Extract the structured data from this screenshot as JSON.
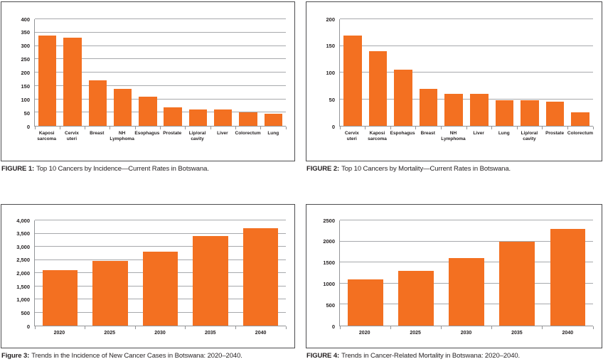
{
  "colors": {
    "bar_orange": "#F37021",
    "gridline_gray": "#A7A9AC",
    "axis_gray": "#939598",
    "box_border": "#4D4D4F",
    "text": "#231F20"
  },
  "chart_data": [
    {
      "type": "bar",
      "title": "FIGURE 1: Top 10 Cancers by Incidence—Current Rates in Botswana.",
      "caption_label": "FIGURE 1:",
      "caption_text": "Top 10 Cancers by Incidence—Current Rates in Botswana.",
      "categories": [
        "Kaposi sarcoma",
        "Cervix uteri",
        "Breast",
        "NH Lymphoma",
        "Esophagus",
        "Prostate",
        "Lip/oral cavity",
        "Liver",
        "Colorectum",
        "Lung"
      ],
      "values": [
        340,
        330,
        170,
        140,
        110,
        70,
        62,
        61,
        51,
        45
      ],
      "xlabel": "",
      "ylabel": "",
      "ylim": [
        0,
        400
      ],
      "ytick_interval": 50,
      "ytick_labels": [
        "0",
        "50",
        "100",
        "150",
        "200",
        "250",
        "300",
        "350",
        "400"
      ],
      "grid": true,
      "legend": false,
      "bar_color": "#F37021"
    },
    {
      "type": "bar",
      "title": "FIGURE 2: Top 10 Cancers by Mortality—Current Rates in Botswana.",
      "caption_label": "FIGURE 2:",
      "caption_text": "Top 10 Cancers by Mortality—Current Rates in Botswana.",
      "categories": [
        "Cervix uteri",
        "Kaposi sarcoma",
        "Espohagus",
        "Breast",
        "NH Lymphoma",
        "Liver",
        "Lung",
        "Lip/oral cavity",
        "Prostate",
        "Colorectum"
      ],
      "values": [
        170,
        140,
        105,
        70,
        60,
        60,
        48,
        48,
        45,
        25
      ],
      "xlabel": "",
      "ylabel": "",
      "ylim": [
        0,
        200
      ],
      "ytick_interval": 50,
      "ytick_labels": [
        "0",
        "50",
        "100",
        "150",
        "200"
      ],
      "grid": true,
      "legend": false,
      "bar_color": "#F37021"
    },
    {
      "type": "bar",
      "title": "Figure 3: Trends in the Incidence of New Cancer Cases in Botswana: 2020–2040.",
      "caption_label": "Figure 3:",
      "caption_text": "Trends in the Incidence of New Cancer Cases in Botswana: 2020–2040.",
      "categories": [
        "2020",
        "2025",
        "2030",
        "2035",
        "2040"
      ],
      "values": [
        2100,
        2450,
        2800,
        3400,
        3700
      ],
      "xlabel": "",
      "ylabel": "",
      "ylim": [
        0,
        4000
      ],
      "ytick_interval": 500,
      "ytick_labels": [
        "0",
        "500",
        "1,000",
        "1,500",
        "2,000",
        "2,500",
        "3,000",
        "3,500",
        "4,000"
      ],
      "grid": true,
      "legend": false,
      "bar_color": "#F37021"
    },
    {
      "type": "bar",
      "title": "FIGURE 4: Trends in Cancer-Related Mortality in Botswana: 2020–2040.",
      "caption_label": "FIGURE 4:",
      "caption_text": "Trends in Cancer-Related Mortality in Botswana: 2020–2040.",
      "categories": [
        "2020",
        "2025",
        "2030",
        "2035",
        "2040"
      ],
      "values": [
        1100,
        1300,
        1600,
        2000,
        2300
      ],
      "xlabel": "",
      "ylabel": "",
      "ylim": [
        0,
        2500
      ],
      "ytick_interval": 500,
      "ytick_labels": [
        "0",
        "500",
        "1000",
        "1500",
        "2000",
        "2500"
      ],
      "grid": true,
      "legend": false,
      "bar_color": "#F37021"
    }
  ]
}
